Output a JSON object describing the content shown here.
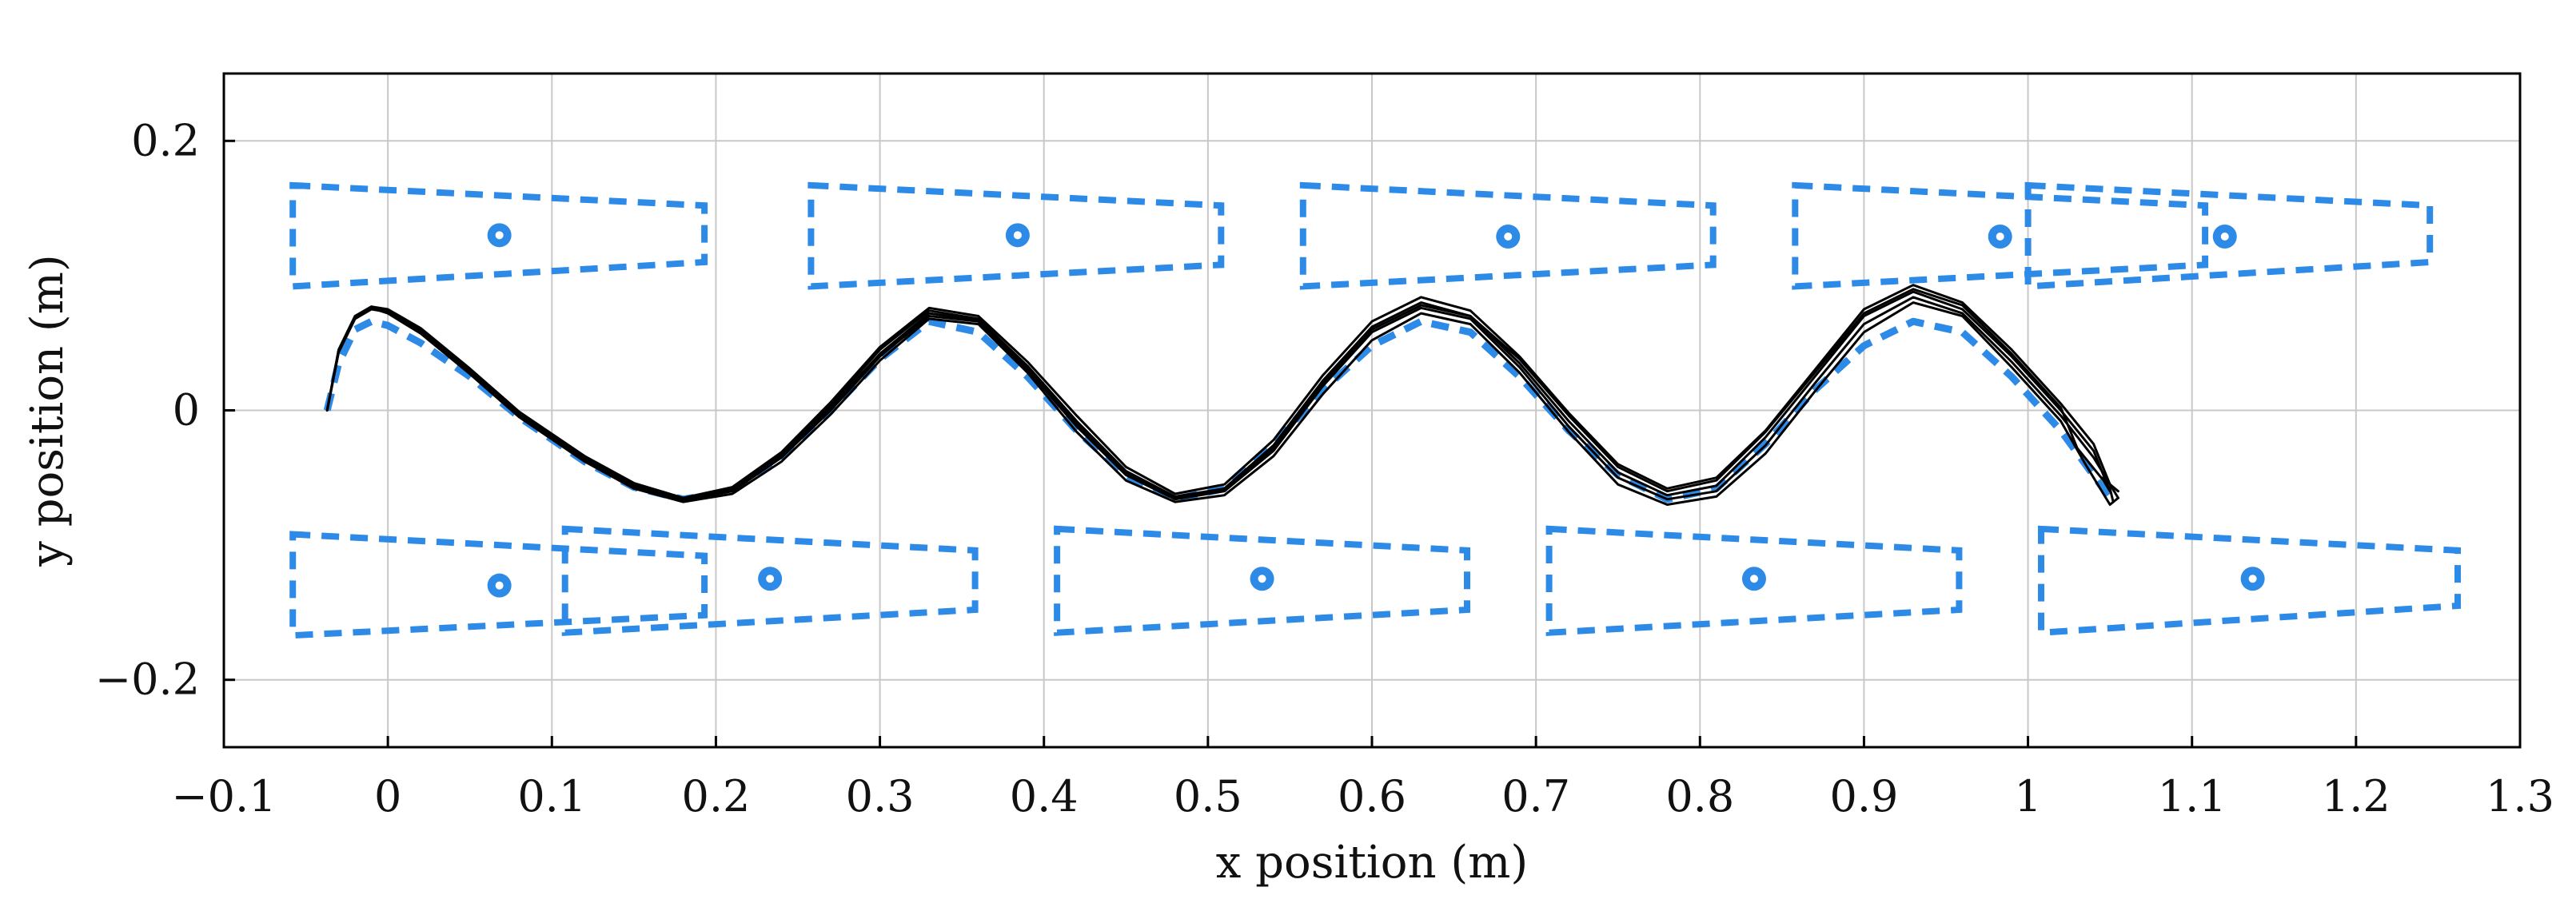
{
  "chart_data": {
    "type": "line",
    "title": "",
    "xlabel": "x position (m)",
    "ylabel": "y position (m)",
    "xlim": [
      -0.1,
      1.3
    ],
    "ylim": [
      -0.25,
      0.25
    ],
    "xticks": [
      -0.1,
      0,
      0.1,
      0.2,
      0.3,
      0.4,
      0.5,
      0.6,
      0.7,
      0.8,
      0.9,
      1.0,
      1.1,
      1.2,
      1.3
    ],
    "xtick_labels": [
      "−0.1",
      "0",
      "0.1",
      "0.2",
      "0.3",
      "0.4",
      "0.5",
      "0.6",
      "0.7",
      "0.8",
      "0.9",
      "1",
      "1.1",
      "1.2",
      "1.3"
    ],
    "yticks": [
      -0.2,
      0,
      0.2
    ],
    "ytick_labels": [
      "−0.2",
      "0",
      "0.2"
    ],
    "grid": true,
    "legend": "none",
    "colors": {
      "reference": "#2d8ae6",
      "trajectory": "#000000",
      "grid": "#c8c8c8"
    },
    "reference_path": {
      "x": [
        -0.037,
        -0.03,
        -0.02,
        -0.01,
        0.0,
        0.02,
        0.05,
        0.08,
        0.12,
        0.15,
        0.18,
        0.21,
        0.24,
        0.27,
        0.3,
        0.33,
        0.36,
        0.39,
        0.42,
        0.45,
        0.48,
        0.51,
        0.54,
        0.57,
        0.6,
        0.63,
        0.66,
        0.69,
        0.72,
        0.75,
        0.78,
        0.81,
        0.84,
        0.87,
        0.9,
        0.93,
        0.96,
        0.99,
        1.02,
        1.05
      ],
      "y": [
        0.0,
        0.035,
        0.06,
        0.066,
        0.063,
        0.05,
        0.025,
        -0.005,
        -0.038,
        -0.057,
        -0.066,
        -0.06,
        -0.035,
        0.0,
        0.038,
        0.066,
        0.058,
        0.025,
        -0.015,
        -0.048,
        -0.066,
        -0.058,
        -0.025,
        0.015,
        0.048,
        0.066,
        0.058,
        0.025,
        -0.015,
        -0.048,
        -0.066,
        -0.058,
        -0.025,
        0.015,
        0.048,
        0.066,
        0.058,
        0.025,
        -0.015,
        -0.065
      ]
    },
    "regions": [
      {
        "corners": [
          [
            -0.058,
            0.167
          ],
          [
            0.193,
            0.152
          ],
          [
            0.193,
            0.11
          ],
          [
            -0.058,
            0.092
          ]
        ]
      },
      {
        "corners": [
          [
            0.258,
            0.167
          ],
          [
            0.508,
            0.152
          ],
          [
            0.508,
            0.108
          ],
          [
            0.258,
            0.092
          ]
        ]
      },
      {
        "corners": [
          [
            0.558,
            0.167
          ],
          [
            0.808,
            0.152
          ],
          [
            0.808,
            0.108
          ],
          [
            0.558,
            0.092
          ]
        ]
      },
      {
        "corners": [
          [
            0.858,
            0.167
          ],
          [
            1.108,
            0.152
          ],
          [
            1.108,
            0.108
          ],
          [
            0.858,
            0.092
          ]
        ]
      },
      {
        "corners": [
          [
            1.0,
            0.167
          ],
          [
            1.245,
            0.152
          ],
          [
            1.245,
            0.11
          ],
          [
            1.0,
            0.092
          ]
        ]
      },
      {
        "corners": [
          [
            -0.058,
            -0.092
          ],
          [
            0.193,
            -0.108
          ],
          [
            0.193,
            -0.152
          ],
          [
            -0.058,
            -0.167
          ]
        ]
      },
      {
        "corners": [
          [
            0.108,
            -0.088
          ],
          [
            0.358,
            -0.104
          ],
          [
            0.358,
            -0.148
          ],
          [
            0.108,
            -0.165
          ]
        ]
      },
      {
        "corners": [
          [
            0.408,
            -0.088
          ],
          [
            0.658,
            -0.104
          ],
          [
            0.658,
            -0.148
          ],
          [
            0.408,
            -0.165
          ]
        ]
      },
      {
        "corners": [
          [
            0.708,
            -0.088
          ],
          [
            0.958,
            -0.104
          ],
          [
            0.958,
            -0.148
          ],
          [
            0.708,
            -0.165
          ]
        ]
      },
      {
        "corners": [
          [
            1.008,
            -0.088
          ],
          [
            1.262,
            -0.104
          ],
          [
            1.262,
            -0.145
          ],
          [
            1.008,
            -0.165
          ]
        ]
      }
    ],
    "targets": {
      "x": [
        0.068,
        0.384,
        0.683,
        0.983,
        1.12,
        0.068,
        0.233,
        0.533,
        0.833,
        1.137
      ],
      "y": [
        0.13,
        0.13,
        0.129,
        0.129,
        0.129,
        -0.13,
        -0.125,
        -0.125,
        -0.125,
        -0.125
      ]
    },
    "series": [
      {
        "x": [
          -0.037,
          -0.03,
          -0.02,
          -0.01,
          0.0,
          0.02,
          0.05,
          0.08,
          0.12,
          0.15,
          0.18,
          0.21,
          0.24,
          0.27,
          0.3,
          0.33,
          0.36,
          0.39,
          0.42,
          0.45,
          0.48,
          0.51,
          0.54,
          0.57,
          0.6,
          0.63,
          0.66,
          0.69,
          0.72,
          0.75,
          0.78,
          0.81,
          0.84,
          0.87,
          0.9,
          0.93,
          0.96,
          0.99,
          1.02,
          1.04,
          1.05,
          1.045
        ],
        "y": [
          0.0,
          0.045,
          0.07,
          0.077,
          0.074,
          0.06,
          0.03,
          -0.002,
          -0.035,
          -0.055,
          -0.066,
          -0.058,
          -0.033,
          0.004,
          0.045,
          0.074,
          0.068,
          0.033,
          -0.008,
          -0.045,
          -0.064,
          -0.058,
          -0.026,
          0.022,
          0.062,
          0.08,
          0.07,
          0.035,
          -0.008,
          -0.046,
          -0.063,
          -0.056,
          -0.02,
          0.025,
          0.07,
          0.088,
          0.075,
          0.04,
          0.0,
          -0.03,
          -0.06,
          -0.05
        ]
      },
      {
        "x": [
          -0.037,
          -0.03,
          -0.02,
          -0.01,
          0.0,
          0.02,
          0.05,
          0.08,
          0.12,
          0.15,
          0.18,
          0.21,
          0.24,
          0.27,
          0.3,
          0.33,
          0.36,
          0.39,
          0.42,
          0.45,
          0.48,
          0.51,
          0.54,
          0.57,
          0.6,
          0.63,
          0.66,
          0.69,
          0.72,
          0.75,
          0.78,
          0.81,
          0.84,
          0.87,
          0.9,
          0.93,
          0.96,
          0.99,
          1.02,
          1.04,
          1.055,
          1.05
        ],
        "y": [
          0.0,
          0.043,
          0.068,
          0.075,
          0.073,
          0.058,
          0.028,
          -0.004,
          -0.036,
          -0.057,
          -0.067,
          -0.06,
          -0.035,
          0.0,
          0.04,
          0.07,
          0.066,
          0.03,
          -0.012,
          -0.048,
          -0.066,
          -0.06,
          -0.03,
          0.018,
          0.058,
          0.076,
          0.068,
          0.032,
          -0.012,
          -0.05,
          -0.066,
          -0.06,
          -0.026,
          0.02,
          0.064,
          0.084,
          0.072,
          0.036,
          -0.004,
          -0.035,
          -0.065,
          -0.055
        ]
      },
      {
        "x": [
          -0.037,
          -0.03,
          -0.02,
          -0.01,
          0.0,
          0.02,
          0.05,
          0.08,
          0.12,
          0.15,
          0.18,
          0.21,
          0.24,
          0.27,
          0.3,
          0.33,
          0.36,
          0.39,
          0.42,
          0.45,
          0.48,
          0.51,
          0.54,
          0.57,
          0.6,
          0.63,
          0.66,
          0.69,
          0.72,
          0.75,
          0.78,
          0.81,
          0.84,
          0.87,
          0.9,
          0.93,
          0.96,
          0.99,
          1.02,
          1.035,
          1.05,
          1.055
        ],
        "y": [
          0.0,
          0.044,
          0.069,
          0.076,
          0.072,
          0.057,
          0.027,
          -0.005,
          -0.038,
          -0.058,
          -0.068,
          -0.062,
          -0.038,
          -0.003,
          0.037,
          0.068,
          0.064,
          0.028,
          -0.016,
          -0.052,
          -0.068,
          -0.063,
          -0.034,
          0.012,
          0.052,
          0.072,
          0.064,
          0.028,
          -0.016,
          -0.055,
          -0.07,
          -0.064,
          -0.032,
          0.014,
          0.058,
          0.08,
          0.07,
          0.032,
          -0.008,
          -0.04,
          -0.07,
          -0.065
        ]
      },
      {
        "x": [
          -0.037,
          -0.03,
          -0.02,
          -0.01,
          0.0,
          0.02,
          0.05,
          0.08,
          0.12,
          0.15,
          0.18,
          0.21,
          0.24,
          0.27,
          0.3,
          0.33,
          0.36,
          0.39,
          0.42,
          0.45,
          0.48,
          0.51,
          0.54,
          0.57,
          0.6,
          0.63,
          0.66,
          0.69,
          0.72,
          0.75,
          0.78,
          0.81,
          0.84,
          0.87,
          0.9,
          0.93,
          0.96,
          0.99,
          1.02,
          1.04,
          1.05,
          1.055
        ],
        "y": [
          0.0,
          0.045,
          0.07,
          0.077,
          0.075,
          0.061,
          0.031,
          -0.001,
          -0.034,
          -0.054,
          -0.065,
          -0.057,
          -0.031,
          0.006,
          0.047,
          0.076,
          0.07,
          0.036,
          -0.004,
          -0.042,
          -0.062,
          -0.055,
          -0.022,
          0.026,
          0.066,
          0.084,
          0.074,
          0.04,
          -0.002,
          -0.04,
          -0.058,
          -0.05,
          -0.015,
          0.03,
          0.075,
          0.093,
          0.08,
          0.045,
          0.005,
          -0.025,
          -0.055,
          -0.06
        ]
      },
      {
        "x": [
          -0.037,
          -0.03,
          -0.02,
          -0.01,
          0.0,
          0.02,
          0.05,
          0.08,
          0.12,
          0.15,
          0.18,
          0.21,
          0.24,
          0.27,
          0.3,
          0.33,
          0.36,
          0.39,
          0.42,
          0.45,
          0.48,
          0.51,
          0.54,
          0.57,
          0.6,
          0.63,
          0.66,
          0.69,
          0.72,
          0.75,
          0.78,
          0.81,
          0.84,
          0.87,
          0.9,
          0.93,
          0.96,
          0.99,
          1.02,
          1.03,
          1.05,
          1.052
        ],
        "y": [
          0.0,
          0.044,
          0.069,
          0.076,
          0.073,
          0.059,
          0.029,
          -0.003,
          -0.037,
          -0.056,
          -0.066,
          -0.059,
          -0.034,
          0.002,
          0.042,
          0.072,
          0.067,
          0.031,
          -0.01,
          -0.046,
          -0.065,
          -0.059,
          -0.028,
          0.02,
          0.06,
          0.078,
          0.07,
          0.038,
          -0.004,
          -0.042,
          -0.06,
          -0.052,
          -0.016,
          0.028,
          0.072,
          0.09,
          0.078,
          0.042,
          0.002,
          -0.028,
          -0.058,
          -0.068
        ]
      }
    ]
  }
}
